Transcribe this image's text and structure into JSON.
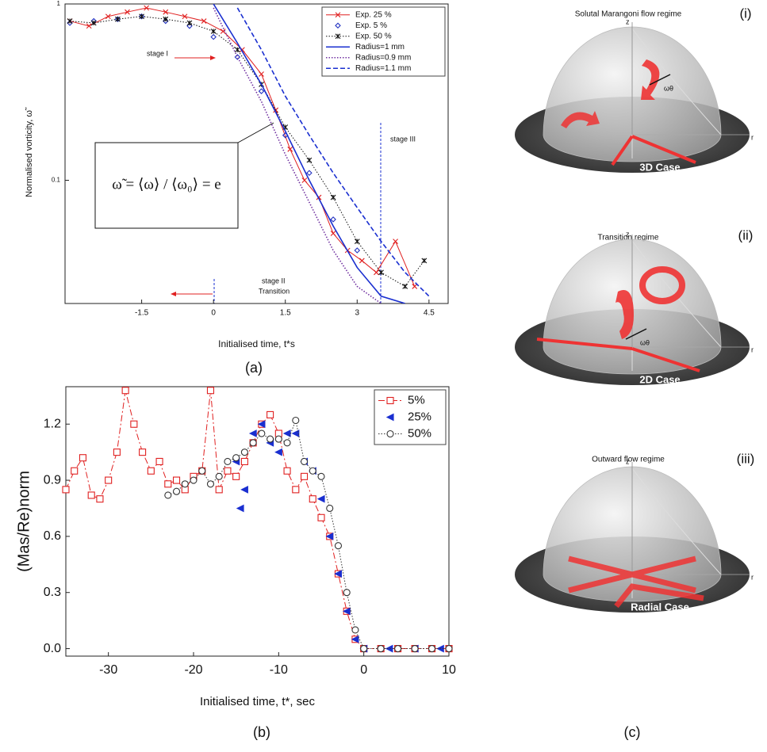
{
  "chart_data": [
    {
      "type": "line",
      "caption": "(a)",
      "xlabel": "Initialised time, t*s",
      "ylabel": "Normalised vorticity, ω̃",
      "ylog": true,
      "xlim": [
        -3.1,
        4.9
      ],
      "ylim": [
        0.02,
        1
      ],
      "xticks": [
        -1.5,
        0,
        1.5,
        3,
        4.5
      ],
      "yticks": [
        0.1,
        1
      ],
      "legend": "upper right",
      "annotations": [
        "stage I",
        "stage II",
        "Transition",
        "stage III",
        "ω̃ = ⟨ω⟩ / ⟨ω₀⟩ = e"
      ],
      "series": [
        {
          "name": "Exp. 25 %",
          "color": "#e02020",
          "marker": "x",
          "dash": "solid",
          "x": [
            -3.0,
            -2.6,
            -2.2,
            -1.8,
            -1.4,
            -1.0,
            -0.6,
            -0.2,
            0.2,
            0.6,
            1.0,
            1.3,
            1.6,
            1.9,
            2.2,
            2.5,
            2.8,
            3.1,
            3.4,
            3.8,
            4.2
          ],
          "values": [
            0.8,
            0.75,
            0.85,
            0.9,
            0.95,
            0.9,
            0.85,
            0.8,
            0.7,
            0.55,
            0.4,
            0.25,
            0.15,
            0.1,
            0.08,
            0.05,
            0.04,
            0.035,
            0.03,
            0.045,
            0.025
          ]
        },
        {
          "name": "Exp.   5 %",
          "color": "#2030c0",
          "marker": "diamond",
          "dash": "none",
          "x": [
            -3.0,
            -2.5,
            -2.0,
            -1.5,
            -1.0,
            -0.5,
            0,
            0.5,
            1.0,
            1.5,
            2.0,
            2.5,
            3.0
          ],
          "values": [
            0.78,
            0.8,
            0.82,
            0.85,
            0.8,
            0.75,
            0.65,
            0.5,
            0.32,
            0.18,
            0.11,
            0.06,
            0.04
          ]
        },
        {
          "name": "Exp. 50 %",
          "color": "#111111",
          "marker": "star",
          "dash": "dotted",
          "x": [
            -3.0,
            -2.5,
            -2.0,
            -1.5,
            -1.0,
            -0.5,
            0,
            0.5,
            1.0,
            1.5,
            2.0,
            2.5,
            3.0,
            3.5,
            4.0,
            4.4
          ],
          "values": [
            0.8,
            0.78,
            0.82,
            0.85,
            0.82,
            0.78,
            0.7,
            0.55,
            0.35,
            0.2,
            0.13,
            0.08,
            0.045,
            0.03,
            0.025,
            0.035
          ]
        },
        {
          "name": "Radius=1 mm",
          "color": "#1a2fd0",
          "marker": "none",
          "dash": "solid",
          "x": [
            0,
            0.5,
            1.0,
            1.5,
            2.0,
            2.5,
            3.0,
            3.5,
            4.0
          ],
          "values": [
            1.0,
            0.6,
            0.35,
            0.19,
            0.1,
            0.055,
            0.032,
            0.022,
            0.02
          ]
        },
        {
          "name": "Radius=0.9 mm",
          "color": "#7030a0",
          "marker": "none",
          "dash": "dotted",
          "x": [
            0,
            0.5,
            1.0,
            1.5,
            2.0,
            2.5,
            3.0,
            3.5
          ],
          "values": [
            0.95,
            0.5,
            0.28,
            0.14,
            0.075,
            0.04,
            0.025,
            0.02
          ]
        },
        {
          "name": "Radius=1.1 mm",
          "color": "#1a2fd0",
          "marker": "none",
          "dash": "dashed",
          "x": [
            0.5,
            1.0,
            1.5,
            2.0,
            2.5,
            3.0,
            3.5,
            4.0,
            4.5
          ],
          "values": [
            0.95,
            0.55,
            0.3,
            0.18,
            0.11,
            0.07,
            0.045,
            0.03,
            0.022
          ]
        }
      ]
    },
    {
      "type": "line",
      "caption": "(b)",
      "xlabel": "Initialised time, t*, sec",
      "ylabel": "(Mas/Re)norm",
      "ylog": false,
      "xlim": [
        -35,
        10
      ],
      "ylim": [
        -0.04,
        1.4
      ],
      "xticks": [
        -30,
        -20,
        -10,
        0,
        10
      ],
      "yticks": [
        {
          "value": 0,
          "label": "0.0"
        },
        0.3,
        0.6,
        0.9,
        1.2
      ],
      "legend": "upper right",
      "series": [
        {
          "name": "5%",
          "color": "#e02020",
          "marker": "square",
          "dash": "dashdot",
          "x": [
            -35,
            -34,
            -33,
            -32,
            -31,
            -30,
            -29,
            -28,
            -27,
            -26,
            -25,
            -24,
            -23,
            -22,
            -21,
            -20,
            -19,
            -18,
            -17,
            -16,
            -15,
            -14,
            -13,
            -12,
            -11,
            -10,
            -9,
            -8,
            -7,
            -6,
            -5,
            -4,
            -3,
            -2,
            -1,
            0,
            2,
            4,
            6,
            8,
            10
          ],
          "values": [
            0.85,
            0.95,
            1.02,
            0.82,
            0.8,
            0.9,
            1.05,
            1.38,
            1.2,
            1.05,
            0.95,
            1.0,
            0.88,
            0.9,
            0.85,
            0.92,
            0.95,
            1.38,
            0.85,
            0.95,
            0.92,
            1.0,
            1.1,
            1.2,
            1.25,
            1.15,
            0.95,
            0.85,
            0.92,
            0.8,
            0.7,
            0.6,
            0.4,
            0.2,
            0.05,
            0,
            0,
            0,
            0,
            0,
            0
          ]
        },
        {
          "name": "25%",
          "color": "#1a2fd0",
          "marker": "triangle",
          "dash": "none",
          "x": [
            -15,
            -14.5,
            -14,
            -13,
            -12,
            -11,
            -10,
            -9,
            -8,
            -7,
            -6,
            -5,
            -4,
            -3,
            -2,
            -1,
            0,
            3,
            6,
            9
          ],
          "values": [
            1.0,
            0.75,
            0.85,
            1.15,
            1.2,
            1.1,
            1.05,
            1.15,
            1.15,
            1.0,
            0.95,
            0.8,
            0.6,
            0.4,
            0.2,
            0.05,
            0,
            0,
            0,
            0
          ]
        },
        {
          "name": "50%",
          "color": "#333333",
          "marker": "circle",
          "dash": "dotted",
          "x": [
            -23,
            -22,
            -21,
            -20,
            -19,
            -18,
            -17,
            -16,
            -15,
            -14,
            -13,
            -12,
            -11,
            -10,
            -9,
            -8,
            -7,
            -6,
            -5,
            -4,
            -3,
            -2,
            -1,
            0,
            2,
            4,
            6,
            8,
            10
          ],
          "values": [
            0.82,
            0.84,
            0.88,
            0.9,
            0.95,
            0.88,
            0.92,
            1.0,
            1.02,
            1.05,
            1.1,
            1.15,
            1.12,
            1.12,
            1.1,
            1.22,
            1.0,
            0.95,
            0.92,
            0.75,
            0.55,
            0.3,
            0.1,
            0,
            0,
            0,
            0,
            0,
            0
          ]
        }
      ]
    }
  ],
  "diagram": {
    "caption": "(c)",
    "panels": [
      {
        "title": "Solutal Marangoni flow regime",
        "number": "(i)",
        "case": "3D Case",
        "z": "z",
        "r": "r",
        "omega": "ωθ"
      },
      {
        "title": "Transition regime",
        "number": "(ii)",
        "case": "2D Case",
        "z": "z",
        "r": "r",
        "omega": "ωθ"
      },
      {
        "title": "Outward flow regime",
        "number": "(iii)",
        "case": "Radial Case",
        "z": "z",
        "r": "r"
      }
    ]
  }
}
